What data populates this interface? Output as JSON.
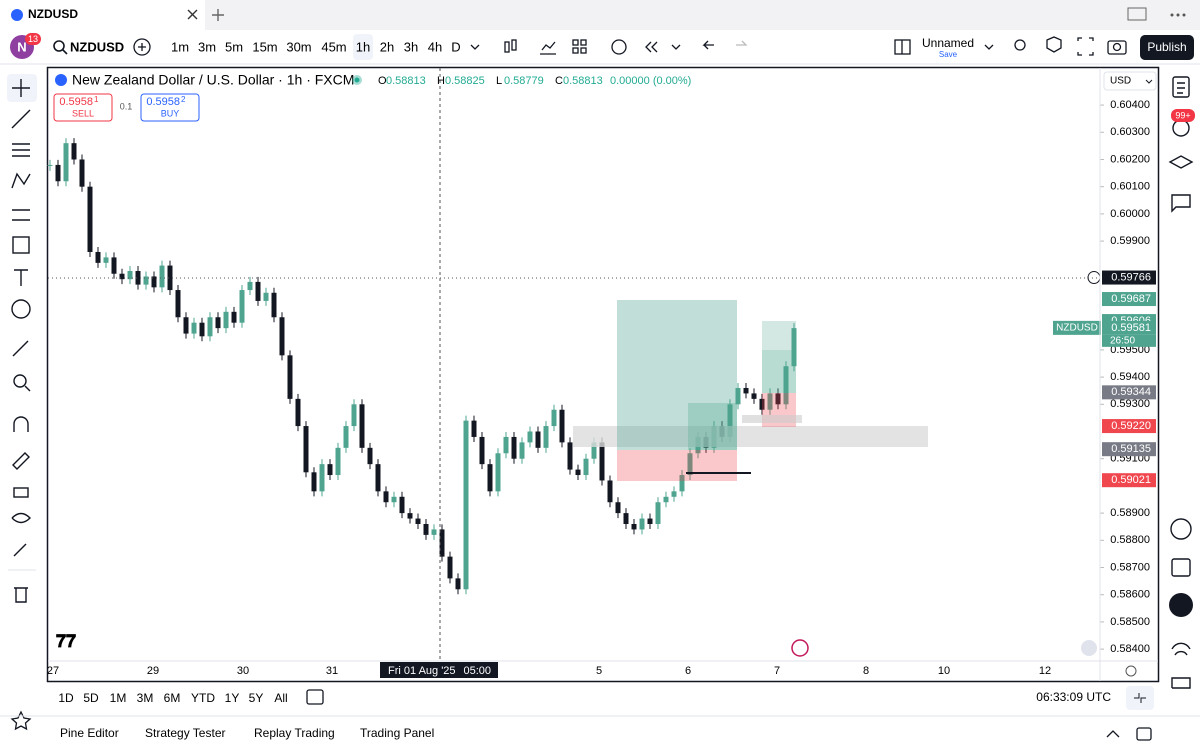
{
  "tab": {
    "title": "NZDUSD"
  },
  "toolbar": {
    "avatar": "N",
    "badge": "13",
    "symbol": "NZDUSD",
    "intervals": [
      "1m",
      "3m",
      "5m",
      "15m",
      "30m",
      "45m",
      "1h",
      "2h",
      "3h",
      "4h",
      "D"
    ],
    "layout_name": "Unnamed",
    "save": "Save",
    "publish": "Publish"
  },
  "chart": {
    "title": "New Zealand Dollar / U.S. Dollar · 1h · FXCM",
    "ohlc": [
      {
        "key": "O",
        "value": "0.58813"
      },
      {
        "key": "H",
        "value": "0.58825"
      },
      {
        "key": "L",
        "value": "0.58779"
      },
      {
        "key": "C",
        "value": "0.58813"
      }
    ],
    "change": "0.00000 (0.00%)",
    "sell": {
      "price": "0.5958",
      "sup": "1",
      "label": "SELL"
    },
    "qty": "0.1",
    "buy": {
      "price": "0.5958",
      "sup": "2",
      "label": "BUY"
    },
    "currency": "USD",
    "ylim": [
      0.5836,
      0.6054
    ],
    "yticks": [
      {
        "value": 0.604,
        "label": "0.60400"
      },
      {
        "value": 0.603,
        "label": "0.60300"
      },
      {
        "value": 0.602,
        "label": "0.60200"
      },
      {
        "value": 0.601,
        "label": "0.60100"
      },
      {
        "value": 0.6,
        "label": "0.60000"
      },
      {
        "value": 0.599,
        "label": "0.59900"
      },
      {
        "value": 0.595,
        "label": "0.59500"
      },
      {
        "value": 0.594,
        "label": "0.59400"
      },
      {
        "value": 0.593,
        "label": "0.59300"
      },
      {
        "value": 0.591,
        "label": "0.59100"
      },
      {
        "value": 0.589,
        "label": "0.58900"
      },
      {
        "value": 0.588,
        "label": "0.58800"
      },
      {
        "value": 0.587,
        "label": "0.58700"
      },
      {
        "value": 0.586,
        "label": "0.58600"
      },
      {
        "value": 0.585,
        "label": "0.58500"
      },
      {
        "value": 0.584,
        "label": "0.58400"
      }
    ],
    "price_tags": [
      {
        "value": 0.59766,
        "label": "0.59766",
        "color": "#131722"
      },
      {
        "value": 0.59687,
        "label": "0.59687",
        "color": "#4ea48f"
      },
      {
        "value": 0.59606,
        "label": "0.59606",
        "color": "#4ea48f"
      },
      {
        "value": 0.59581,
        "label": "0.59581",
        "color": "#4ea48f"
      },
      {
        "value": 0.59344,
        "label": "0.59344",
        "color": "#787b86"
      },
      {
        "value": 0.5922,
        "label": "0.59220",
        "color": "#f0474e"
      },
      {
        "value": 0.59135,
        "label": "0.59135",
        "color": "#787b86"
      },
      {
        "value": 0.59021,
        "label": "0.59021",
        "color": "#f0474e"
      }
    ],
    "symbol_tag": "NZDUSD",
    "countdown": "26:50",
    "time_labels": [
      "27",
      "29",
      "30",
      "31",
      "5",
      "6",
      "7",
      "8",
      "10",
      "12"
    ],
    "crosshair_time": "Fri 01 Aug '25",
    "crosshair_hour": "05:00",
    "closes": [
      0.6018,
      0.6012,
      0.6026,
      0.602,
      0.601,
      0.5986,
      0.5982,
      0.5984,
      0.5978,
      0.5976,
      0.5979,
      0.5974,
      0.5977,
      0.5973,
      0.5981,
      0.5972,
      0.5962,
      0.5956,
      0.596,
      0.5955,
      0.5962,
      0.5958,
      0.5964,
      0.596,
      0.5972,
      0.5975,
      0.5968,
      0.5971,
      0.5962,
      0.5948,
      0.5932,
      0.5922,
      0.5905,
      0.5898,
      0.5908,
      0.5904,
      0.5914,
      0.5922,
      0.593,
      0.5914,
      0.5908,
      0.5898,
      0.5894,
      0.5896,
      0.589,
      0.5888,
      0.5886,
      0.5882,
      0.5884,
      0.5874,
      0.5866,
      0.5862,
      0.5924,
      0.5918,
      0.5908,
      0.5898,
      0.5912,
      0.5918,
      0.591,
      0.5916,
      0.592,
      0.5914,
      0.5922,
      0.5928,
      0.5916,
      0.5906,
      0.5904,
      0.591,
      0.5916,
      0.5902,
      0.5894,
      0.589,
      0.5886,
      0.5884,
      0.5888,
      0.5886,
      0.5894,
      0.5896,
      0.5898,
      0.5904,
      0.5912,
      0.5918,
      0.5914,
      0.5922,
      0.5918,
      0.593,
      0.5936,
      0.5934,
      0.5932,
      0.5928,
      0.5934,
      0.593,
      0.5944,
      0.5958
    ],
    "up_color": "#4ea48f",
    "down_color": "#131722"
  },
  "bottom": {
    "ranges": [
      "1D",
      "5D",
      "1M",
      "3M",
      "6M",
      "YTD",
      "1Y",
      "5Y",
      "All"
    ],
    "clock": "06:33:09 UTC"
  },
  "footer": {
    "tabs": [
      "Pine Editor",
      "Strategy Tester",
      "Replay Trading",
      "Trading Panel"
    ]
  },
  "sidebar": {
    "alerts_badge": "99+"
  }
}
